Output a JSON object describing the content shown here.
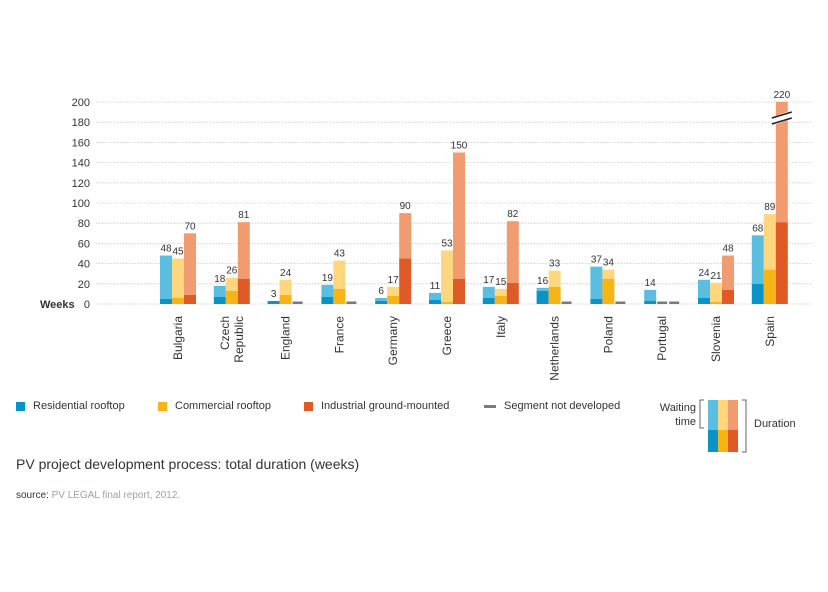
{
  "chart_data": {
    "type": "bar",
    "y_axis_label": "Weeks",
    "ylim": [
      0,
      200
    ],
    "yticks": [
      0,
      20,
      40,
      60,
      80,
      100,
      120,
      140,
      160,
      180,
      200
    ],
    "grid": true,
    "axis_break_marker": "Spain industrial ground-mounted bar broken above 200",
    "categories": [
      "Bulgaria",
      "Czech Republic",
      "England",
      "France",
      "Germany",
      "Greece",
      "Italy",
      "Netherlands",
      "Poland",
      "Portugal",
      "Slovenia",
      "Spain"
    ],
    "series": [
      {
        "name": "Residential rooftop",
        "color_light": "#5bbde0",
        "color_dark": "#0a93c6",
        "total_duration": [
          48,
          18,
          3,
          19,
          6,
          11,
          17,
          16,
          37,
          14,
          24,
          68
        ],
        "waiting_time": [
          43,
          11,
          0,
          12,
          3,
          7,
          11,
          3,
          32,
          11,
          18,
          48
        ],
        "not_developed": [
          false,
          false,
          false,
          false,
          false,
          false,
          false,
          false,
          false,
          false,
          false,
          false
        ]
      },
      {
        "name": "Commercial rooftop",
        "color_light": "#fdd77e",
        "color_dark": "#f6b514",
        "total_duration": [
          45,
          26,
          24,
          43,
          17,
          53,
          15,
          33,
          34,
          null,
          21,
          89
        ],
        "waiting_time": [
          39,
          13,
          15,
          28,
          9,
          51,
          7,
          16,
          9,
          null,
          19,
          55
        ],
        "not_developed": [
          false,
          false,
          false,
          false,
          false,
          false,
          false,
          false,
          false,
          true,
          false,
          false
        ]
      },
      {
        "name": "Industrial ground-mounted",
        "color_light": "#f09c70",
        "color_dark": "#e05a27",
        "total_duration": [
          70,
          81,
          null,
          null,
          90,
          150,
          82,
          null,
          null,
          null,
          48,
          220
        ],
        "waiting_time": [
          61,
          56,
          null,
          null,
          45,
          125,
          61,
          null,
          null,
          null,
          34,
          139
        ],
        "not_developed": [
          false,
          false,
          true,
          true,
          false,
          false,
          false,
          true,
          true,
          true,
          false,
          false
        ]
      }
    ],
    "value_labels": {
      "Bulgaria": [
        "48",
        "45",
        "70"
      ],
      "Czech Republic": [
        "18",
        "26",
        "81"
      ],
      "England": [
        "3",
        "24",
        ""
      ],
      "France": [
        "19",
        "43",
        ""
      ],
      "Germany": [
        "6",
        "17",
        "90"
      ],
      "Greece": [
        "11",
        "53",
        "150"
      ],
      "Italy": [
        "17",
        "15",
        "82"
      ],
      "Netherlands": [
        "16",
        "33",
        ""
      ],
      "Poland": [
        "37",
        "34",
        ""
      ],
      "Portugal": [
        "14",
        "",
        ""
      ],
      "Slovenia": [
        "24",
        "21",
        "48"
      ],
      "Spain": [
        "68",
        "89",
        "220"
      ]
    },
    "category_labels": [
      [
        "Bulgaria"
      ],
      [
        "Czech",
        "Republic"
      ],
      [
        "England"
      ],
      [
        "France"
      ],
      [
        "Germany"
      ],
      [
        "Greece"
      ],
      [
        "Italy"
      ],
      [
        "Netherlands"
      ],
      [
        "Poland"
      ],
      [
        "Portugal"
      ],
      [
        "Slovenia"
      ],
      [
        "Spain"
      ]
    ]
  },
  "legend": {
    "items": [
      {
        "label": "Residential rooftop",
        "color": "#0a93c6",
        "kind": "square"
      },
      {
        "label": "Commercial rooftop",
        "color": "#f6b514",
        "kind": "square"
      },
      {
        "label": "Industrial ground-mounted",
        "color": "#e05a27",
        "kind": "square"
      },
      {
        "label": "Segment not developed",
        "color": "#7a7a7a",
        "kind": "line"
      }
    ],
    "key_waiting_line1": "Waiting",
    "key_waiting_line2": "time",
    "key_duration": "Duration"
  },
  "caption": "PV project development process: total duration (weeks)",
  "source_prefix": "source:",
  "source_text": "PV LEGAL final report, 2012."
}
